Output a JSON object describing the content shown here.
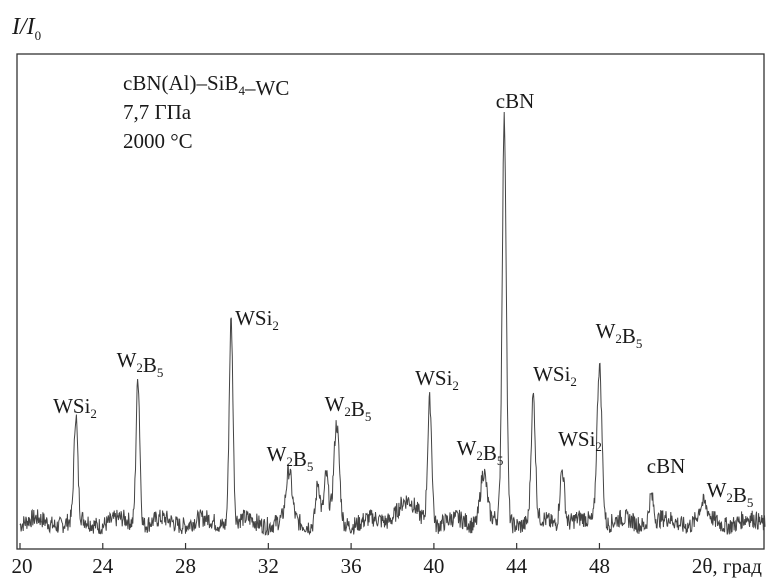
{
  "chart_data": {
    "type": "line",
    "ylabel": {
      "main": "I/I",
      "sub": "0"
    },
    "xlabel": "2θ, град",
    "xlim": [
      20,
      56
    ],
    "ylim": [
      0,
      1
    ],
    "xticks": [
      20,
      24,
      28,
      32,
      36,
      40,
      44,
      48
    ],
    "grid": false,
    "annotation_lines": [
      {
        "parts": [
          {
            "t": "cBN(Al)–SiB"
          },
          {
            "t": "4",
            "sub": true
          },
          {
            "t": "–WC"
          }
        ]
      },
      {
        "parts": [
          {
            "t": "7,7 ГПа"
          }
        ]
      },
      {
        "parts": [
          {
            "t": "2000 °C"
          }
        ]
      }
    ],
    "peaks": [
      {
        "x": 22.7,
        "y": 0.26,
        "w": 0.09,
        "label": [
          {
            "t": "WSi"
          },
          {
            "t": "2",
            "sub": true
          }
        ]
      },
      {
        "x": 25.7,
        "y": 0.37,
        "w": 0.09,
        "label": [
          {
            "t": "W"
          },
          {
            "t": "2",
            "sub": true
          },
          {
            "t": "B"
          },
          {
            "t": "5",
            "sub": true
          }
        ]
      },
      {
        "x": 30.2,
        "y": 0.51,
        "w": 0.09,
        "label": [
          {
            "t": "WSi"
          },
          {
            "t": "2",
            "sub": true
          }
        ]
      },
      {
        "x": 33.0,
        "y": 0.12,
        "w": 0.14,
        "label": [
          {
            "t": "W"
          },
          {
            "t": "2",
            "sub": true
          },
          {
            "t": "B"
          },
          {
            "t": "5",
            "sub": true
          }
        ]
      },
      {
        "x": 34.4,
        "y": 0.1,
        "w": 0.1
      },
      {
        "x": 34.8,
        "y": 0.11,
        "w": 0.1
      },
      {
        "x": 35.3,
        "y": 0.24,
        "w": 0.13,
        "label": [
          {
            "t": "W"
          },
          {
            "t": "2",
            "sub": true
          },
          {
            "t": "B"
          },
          {
            "t": "5",
            "sub": true
          }
        ]
      },
      {
        "x": 38.6,
        "y": 0.05,
        "w": 0.45
      },
      {
        "x": 39.8,
        "y": 0.31,
        "w": 0.1,
        "label": [
          {
            "t": "WSi"
          },
          {
            "t": "2",
            "sub": true
          }
        ]
      },
      {
        "x": 42.4,
        "y": 0.13,
        "w": 0.16,
        "label": [
          {
            "t": "W"
          },
          {
            "t": "2",
            "sub": true
          },
          {
            "t": "B"
          },
          {
            "t": "5",
            "sub": true
          }
        ]
      },
      {
        "x": 43.4,
        "y": 1.0,
        "w": 0.1,
        "label": [
          {
            "t": "cBN"
          }
        ]
      },
      {
        "x": 44.8,
        "y": 0.31,
        "w": 0.1,
        "label": [
          {
            "t": "WSi"
          },
          {
            "t": "2",
            "sub": true
          }
        ]
      },
      {
        "x": 46.2,
        "y": 0.14,
        "w": 0.11,
        "label": [
          {
            "t": "WSi"
          },
          {
            "t": "2",
            "sub": true
          }
        ]
      },
      {
        "x": 48.0,
        "y": 0.4,
        "w": 0.12,
        "label": [
          {
            "t": "W"
          },
          {
            "t": "2",
            "sub": true
          },
          {
            "t": "B"
          },
          {
            "t": "5",
            "sub": true
          }
        ]
      },
      {
        "x": 50.5,
        "y": 0.07,
        "w": 0.11,
        "label": [
          {
            "t": "cBN"
          }
        ]
      },
      {
        "x": 53.0,
        "y": 0.04,
        "w": 0.2,
        "label": [
          {
            "t": "W"
          },
          {
            "t": "2",
            "sub": true
          },
          {
            "t": "B"
          },
          {
            "t": "5",
            "sub": true
          }
        ]
      }
    ]
  }
}
